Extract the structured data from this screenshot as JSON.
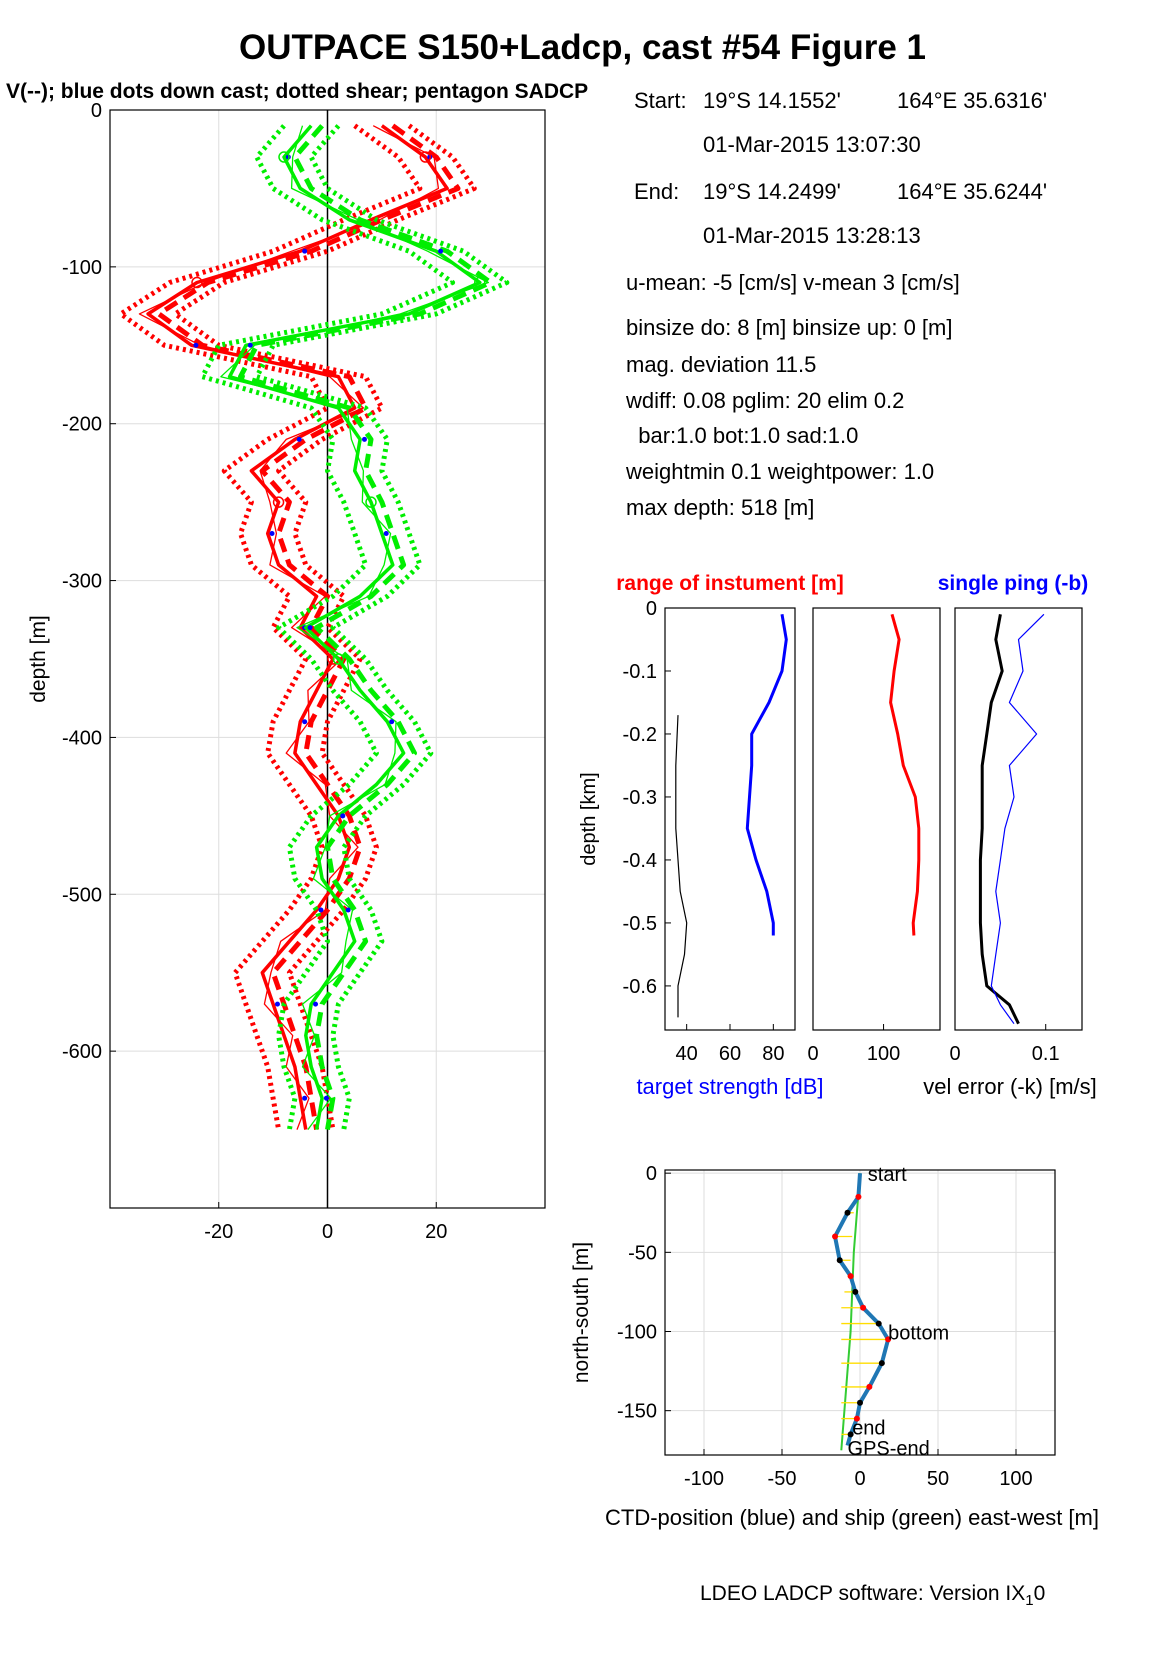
{
  "figure": {
    "title": "OUTPACE S150+Ladcp, cast #54  Figure 1",
    "subtitle": "V(--); blue dots down cast; dotted shear; pentagon SADCP",
    "footer": "LDEO LADCP software: Version IX",
    "footer_sub": "1",
    "footer_tail": "0"
  },
  "info": {
    "start_label": "Start:",
    "start_lat": "19°S 14.1552'",
    "start_lon": "164°E 35.6316'",
    "start_time": "01-Mar-2015 13:07:30",
    "end_label": "End:",
    "end_lat": "19°S 14.2499'",
    "end_lon": "164°E 35.6244'",
    "end_time": "01-Mar-2015 13:28:13",
    "line_means": "u-mean:  -5 [cm/s]    v-mean   3 [cm/s]",
    "line_binsize": "binsize do: 8 [m]  binsize up:  0 [m]",
    "line_magdev": "mag. deviation 11.5",
    "line_wdiff": "wdiff: 0.08  pglim: 20  elim 0.2",
    "line_bar": "  bar:1.0 bot:1.0 sad:1.0",
    "line_weight": "weightmin 0.1  weightpower: 1.0",
    "line_maxdepth": "max depth: 518 [m]"
  },
  "colors": {
    "u": "#ff0000",
    "v": "#00ee00",
    "dots": "#0000ff",
    "target": "#0000ff",
    "inst": "#ff0000",
    "err": "#000000",
    "ship": "#33cc33",
    "ctd": "#1f77b4",
    "link": "#ffdd00"
  },
  "chart_data": [
    {
      "type": "line",
      "ylabel": "depth [m]",
      "xlabel": "",
      "xlim": [
        -40,
        40
      ],
      "ylim": [
        -700,
        0
      ],
      "xticks": [
        "-20",
        "0",
        "20"
      ],
      "yticks": [
        "0",
        "-100",
        "-200",
        "-300",
        "-400",
        "-500",
        "-600"
      ],
      "grid": true,
      "series": [
        {
          "color": "u",
          "depth": [
            -10,
            -30,
            -50,
            -70,
            -90,
            -110,
            -130,
            -150,
            -170,
            -190,
            -210,
            -230,
            -250,
            -270,
            -290,
            -310,
            -330,
            -350,
            -370,
            -390,
            -410,
            -430,
            -450,
            -470,
            -490,
            -510,
            -530,
            -550,
            -570,
            -590,
            -610,
            -630,
            -650
          ],
          "values": [
            10,
            18,
            22,
            8,
            -5,
            -24,
            -33,
            -25,
            2,
            5,
            -6,
            -14,
            -9,
            -11,
            -9,
            -2,
            -5,
            1,
            -2,
            -5,
            -6,
            -2,
            2,
            4,
            2,
            -2,
            -7,
            -12,
            -10,
            -8,
            -6,
            -5,
            -4
          ]
        },
        {
          "color": "v",
          "depth": [
            -10,
            -30,
            -50,
            -70,
            -90,
            -110,
            -130,
            -150,
            -170,
            -190,
            -210,
            -230,
            -250,
            -270,
            -290,
            -310,
            -330,
            -350,
            -370,
            -390,
            -410,
            -430,
            -450,
            -470,
            -490,
            -510,
            -530,
            -550,
            -570,
            -590,
            -610,
            -630,
            -650
          ],
          "values": [
            -3,
            -8,
            -5,
            4,
            20,
            28,
            15,
            -15,
            -18,
            2,
            6,
            5,
            8,
            10,
            12,
            6,
            -4,
            2,
            6,
            11,
            14,
            9,
            2,
            -2,
            -1,
            3,
            5,
            1,
            -3,
            -4,
            -3,
            -1,
            -2
          ]
        }
      ]
    },
    {
      "type": "line",
      "title": "range of instument [m]",
      "ylabel": "depth [km]",
      "xlabel": "target strength [dB]",
      "xlim": [
        30,
        90
      ],
      "ylim": [
        -0.67,
        0
      ],
      "xticks": [
        "40",
        "60",
        "80"
      ],
      "yticks": [
        "0",
        "-0.1",
        "-0.2",
        "-0.3",
        "-0.4",
        "-0.5",
        "-0.6"
      ],
      "series": [
        {
          "color": "target",
          "depth": [
            -0.01,
            -0.05,
            -0.1,
            -0.15,
            -0.2,
            -0.25,
            -0.3,
            -0.35,
            -0.4,
            -0.45,
            -0.5,
            -0.52
          ],
          "values": [
            84,
            86,
            84,
            78,
            70,
            70,
            69,
            68,
            72,
            77,
            80,
            80
          ]
        },
        {
          "color": "err",
          "depth": [
            -0.17,
            -0.25,
            -0.35,
            -0.45,
            -0.5,
            -0.55,
            -0.6,
            -0.65
          ],
          "values": [
            36,
            35,
            35,
            37,
            40,
            39,
            36,
            36
          ]
        }
      ]
    },
    {
      "type": "line",
      "xlim": [
        0,
        180
      ],
      "ylim": [
        -0.67,
        0
      ],
      "xticks": [
        "0",
        "100"
      ],
      "series": [
        {
          "color": "inst",
          "depth": [
            -0.01,
            -0.05,
            -0.1,
            -0.15,
            -0.2,
            -0.25,
            -0.3,
            -0.35,
            -0.4,
            -0.45,
            -0.5,
            -0.52
          ],
          "values": [
            112,
            122,
            115,
            110,
            120,
            128,
            145,
            150,
            150,
            148,
            142,
            143
          ]
        }
      ]
    },
    {
      "type": "line",
      "title": "single ping (-b)",
      "xlabel": "vel error (-k) [m/s]",
      "xlim": [
        0,
        0.14
      ],
      "ylim": [
        -0.67,
        0
      ],
      "xticks": [
        "0",
        "0.1"
      ],
      "series": [
        {
          "color": "err",
          "depth": [
            -0.01,
            -0.05,
            -0.1,
            -0.15,
            -0.2,
            -0.25,
            -0.3,
            -0.35,
            -0.4,
            -0.45,
            -0.5,
            -0.55,
            -0.6,
            -0.63,
            -0.66
          ],
          "values": [
            0.05,
            0.045,
            0.052,
            0.04,
            0.035,
            0.03,
            0.03,
            0.03,
            0.028,
            0.028,
            0.028,
            0.03,
            0.035,
            0.06,
            0.07
          ]
        },
        {
          "color": "dots",
          "depth": [
            -0.01,
            -0.05,
            -0.1,
            -0.15,
            -0.2,
            -0.25,
            -0.3,
            -0.35,
            -0.4,
            -0.45,
            -0.5,
            -0.55,
            -0.6,
            -0.63,
            -0.66
          ],
          "values": [
            0.098,
            0.07,
            0.075,
            0.06,
            0.09,
            0.06,
            0.065,
            0.055,
            0.05,
            0.045,
            0.05,
            0.045,
            0.04,
            0.05,
            0.065
          ]
        }
      ]
    },
    {
      "type": "line",
      "xlabel": "CTD-position (blue) and ship (green) east-west [m]",
      "ylabel": "north-south [m]",
      "xlim": [
        -125,
        125
      ],
      "ylim": [
        -178,
        2
      ],
      "xticks": [
        "-100",
        "-50",
        "0",
        "50",
        "100"
      ],
      "yticks": [
        "0",
        "-50",
        "-100",
        "-150"
      ],
      "grid": true,
      "labels": {
        "start": "start",
        "bottom": "bottom",
        "end": "end",
        "gps_end": "GPS-end"
      },
      "series": [
        {
          "color": "ctd",
          "x": [
            0,
            -1,
            -8,
            -16,
            -13,
            -6,
            -3,
            2,
            12,
            18,
            14,
            6,
            0,
            -2,
            -6,
            -8
          ],
          "y": [
            0,
            -15,
            -25,
            -40,
            -55,
            -65,
            -75,
            -85,
            -95,
            -105,
            -120,
            -135,
            -145,
            -155,
            -165,
            -172
          ]
        },
        {
          "color": "ship",
          "x": [
            0,
            -2,
            -4,
            -5,
            -6,
            -8,
            -10,
            -12
          ],
          "y": [
            0,
            -25,
            -50,
            -75,
            -100,
            -125,
            -150,
            -175
          ]
        }
      ]
    }
  ]
}
